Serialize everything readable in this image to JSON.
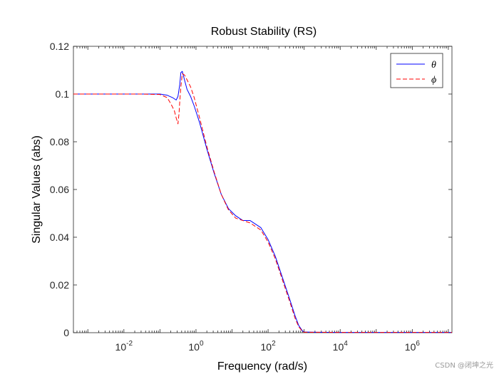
{
  "chart_data": {
    "type": "line",
    "title": "Robust Stability (RS)",
    "xlabel": "Frequency (rad/s)",
    "ylabel": "Singular Values (abs)",
    "xscale": "log",
    "xlim_exp": [
      -3.4,
      7.1
    ],
    "ylim": [
      0,
      0.12
    ],
    "yticks": [
      0,
      0.02,
      0.04,
      0.06,
      0.08,
      0.1,
      0.12
    ],
    "ytick_labels": [
      "0",
      "0.02",
      "0.04",
      "0.06",
      "0.08",
      "0.1",
      "0.12"
    ],
    "xtick_major": [
      {
        "exp": -2,
        "base": "10",
        "sup": "-2"
      },
      {
        "exp": 0,
        "base": "10",
        "sup": "0"
      },
      {
        "exp": 2,
        "base": "10",
        "sup": "2"
      },
      {
        "exp": 4,
        "base": "10",
        "sup": "4"
      },
      {
        "exp": 6,
        "base": "10",
        "sup": "6"
      }
    ],
    "grid": false,
    "legend_position": "top-right",
    "series": [
      {
        "name": "θ",
        "color": "#0000ff",
        "dash": "solid",
        "log10_x": [
          -3.4,
          -2.5,
          -2,
          -1.5,
          -1,
          -0.8,
          -0.65,
          -0.55,
          -0.5,
          -0.45,
          -0.42,
          -0.38,
          -0.32,
          -0.25,
          -0.15,
          -0.05,
          0.1,
          0.3,
          0.5,
          0.7,
          0.9,
          1.1,
          1.3,
          1.5,
          1.8,
          2.0,
          2.2,
          2.4,
          2.6,
          2.75,
          2.85,
          2.95,
          3.0,
          3.3,
          4,
          5,
          6,
          7.1
        ],
        "y": [
          0.1,
          0.1,
          0.1,
          0.1,
          0.1,
          0.0995,
          0.0985,
          0.0975,
          0.099,
          0.104,
          0.109,
          0.1095,
          0.106,
          0.102,
          0.099,
          0.095,
          0.088,
          0.077,
          0.067,
          0.058,
          0.052,
          0.049,
          0.047,
          0.047,
          0.044,
          0.039,
          0.032,
          0.023,
          0.014,
          0.007,
          0.003,
          0.0008,
          0.0003,
          0.0002,
          0.0001,
          0.0001,
          0.0001,
          0.0001
        ]
      },
      {
        "name": "ϕ",
        "color": "#ff0000",
        "dash": "dashed",
        "log10_x": [
          -3.4,
          -2.5,
          -2,
          -1.5,
          -1,
          -0.8,
          -0.7,
          -0.6,
          -0.55,
          -0.5,
          -0.47,
          -0.45,
          -0.42,
          -0.38,
          -0.32,
          -0.25,
          -0.15,
          -0.05,
          0.1,
          0.3,
          0.5,
          0.7,
          0.9,
          1.1,
          1.3,
          1.5,
          1.8,
          2.0,
          2.2,
          2.4,
          2.6,
          2.75,
          2.85,
          2.95,
          3.0,
          3.3,
          4,
          5,
          6,
          7.1
        ],
        "y": [
          0.1,
          0.1,
          0.1,
          0.1,
          0.0998,
          0.0985,
          0.096,
          0.093,
          0.09,
          0.0875,
          0.092,
          0.097,
          0.103,
          0.1085,
          0.108,
          0.106,
          0.103,
          0.0985,
          0.09,
          0.078,
          0.0675,
          0.058,
          0.0515,
          0.048,
          0.047,
          0.046,
          0.043,
          0.038,
          0.031,
          0.022,
          0.013,
          0.006,
          0.0025,
          0.0006,
          0.0002,
          0.0002,
          0.0001,
          0.0001,
          0.0001,
          0.0001
        ]
      }
    ]
  },
  "watermark": "CSDN @闭坤之光"
}
